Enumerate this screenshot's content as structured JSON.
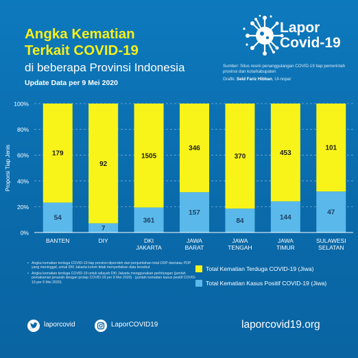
{
  "header": {
    "title_line1": "Angka Kematian",
    "title_line2": "Terkait COVID-19",
    "title_line3": "di beberapa Provinsi Indonesia",
    "update": "Update Data per 9 Mei 2020"
  },
  "logo": {
    "line1": "Lapor",
    "line2": "Covid-19"
  },
  "source": {
    "label": "Sumber:",
    "text": "Situs resmi penanggulangan COVID-19 tiap pemerintah provinsi dan kota/kabupaten",
    "credit_label": "Grafik:",
    "credit_name": "Seid Fariz Hibban",
    "credit_org": ", UI-nopar"
  },
  "colors": {
    "yellow": "#f8f419",
    "blue": "#5ab9ea",
    "background": "#0a6fb0"
  },
  "chart_data": {
    "type": "bar",
    "stacked": true,
    "normalized": true,
    "categories": [
      "BANTEN",
      "DIY",
      "DKI\nJAKARTA",
      "JAWA\nBARAT",
      "JAWA\nTENGAH",
      "JAWA\nTIMUR",
      "SULAWESI\nSELATAN"
    ],
    "series": [
      {
        "name": "Total Kematian Kasus Positif COVID-19 (Jiwa)",
        "color": "#5ab9ea",
        "values": [
          54,
          7,
          361,
          157,
          84,
          144,
          47
        ]
      },
      {
        "name": "Total Kematian Terduga COVID-19 (Jiwa)",
        "color": "#f8f419",
        "values": [
          179,
          92,
          1505,
          346,
          370,
          453,
          101
        ]
      }
    ],
    "ylabel": "Proporsi Tiap Jenis",
    "ylim": [
      0,
      100
    ],
    "yticks": [
      "0%",
      "20%",
      "40%",
      "60%",
      "80%",
      "100%"
    ],
    "grid": true,
    "legend_position": "bottom-right"
  },
  "notes": [
    "Angka kematian terduga COVID-19 tiap provinsi diperoleh dari penjumlahan total ODP dan/atau PDP yang meninggal, untuk DKI Jakarta kolom tidak menyediakan data tersebut",
    "Angka kematian terduga COVID-19 untuk wilayah DKI Jakarta menggunakan perhitungan (jumlah pemakaman jenazah dengan protap COVID-19 per 9 Mei 2020) - (jumlah kematian kasus positif COVID-19 per 9 Mei 2020)"
  ],
  "legend": {
    "yellow_label": "Total Kematian Terduga COVID-19 (Jiwa)",
    "blue_label": "Total Kematian Kasus Positif COVID-19 (Jiwa)"
  },
  "footer": {
    "twitter": "laporcovid",
    "instagram": "LaporCOVID19",
    "website": "laporcovid19.org",
    "twitter_icon": "twitter-bird-icon",
    "instagram_icon": "instagram-icon"
  }
}
